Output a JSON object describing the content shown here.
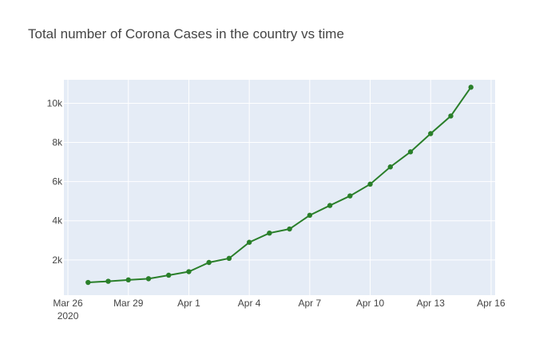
{
  "chart_data": {
    "type": "line",
    "title": "Total number of Corona Cases in the country vs time",
    "xlabel": "",
    "ylabel": "",
    "x_axis": {
      "type": "date",
      "range": [
        "2020-03-26",
        "2020-04-16"
      ],
      "ticks": [
        {
          "date": "2020-03-26",
          "label": "Mar 26",
          "sublabel": "2020"
        },
        {
          "date": "2020-03-29",
          "label": "Mar 29"
        },
        {
          "date": "2020-04-01",
          "label": "Apr 1"
        },
        {
          "date": "2020-04-04",
          "label": "Apr 4"
        },
        {
          "date": "2020-04-07",
          "label": "Apr 7"
        },
        {
          "date": "2020-04-10",
          "label": "Apr 10"
        },
        {
          "date": "2020-04-13",
          "label": "Apr 13"
        },
        {
          "date": "2020-04-16",
          "label": "Apr 16"
        }
      ]
    },
    "y_axis": {
      "range": [
        200,
        11200
      ],
      "ticks": [
        {
          "value": 2000,
          "label": "2k"
        },
        {
          "value": 4000,
          "label": "4k"
        },
        {
          "value": 6000,
          "label": "6k"
        },
        {
          "value": 8000,
          "label": "8k"
        },
        {
          "value": 10000,
          "label": "10k"
        }
      ]
    },
    "grid": true,
    "series": [
      {
        "color": "#2a7f2a",
        "x": [
          "2020-03-27",
          "2020-03-28",
          "2020-03-29",
          "2020-03-30",
          "2020-03-31",
          "2020-04-01",
          "2020-04-02",
          "2020-04-03",
          "2020-04-04",
          "2020-04-05",
          "2020-04-06",
          "2020-04-07",
          "2020-04-08",
          "2020-04-09",
          "2020-04-10",
          "2020-04-11",
          "2020-04-12",
          "2020-04-13",
          "2020-04-14",
          "2020-04-15"
        ],
        "values": [
          850,
          910,
          980,
          1040,
          1220,
          1400,
          1870,
          2080,
          2900,
          3370,
          3580,
          4280,
          4780,
          5270,
          5870,
          6750,
          7520,
          8450,
          9350,
          10820
        ]
      }
    ]
  },
  "colors": {
    "plot_background": "#e5ecf6",
    "grid": "#ffffff",
    "line": "#2a7f2a"
  }
}
